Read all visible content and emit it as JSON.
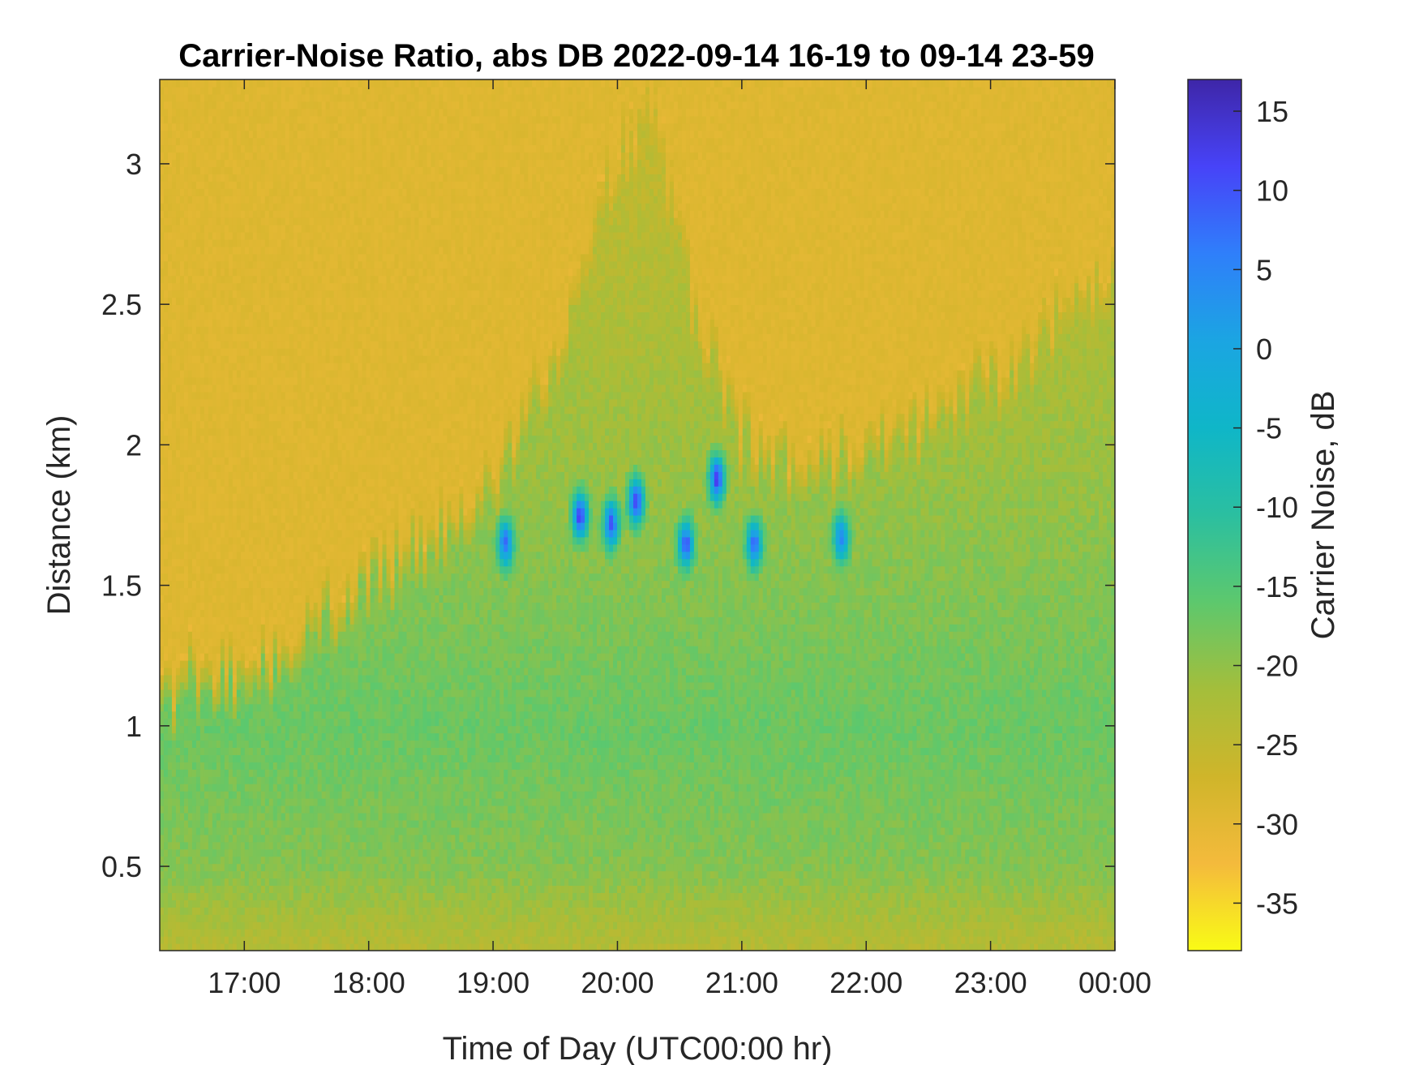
{
  "chart_data": {
    "type": "heatmap",
    "title": "Carrier-Noise Ratio, abs DB 2022-09-14 16-19 to 09-14 23-59",
    "xlabel": "Time of Day (UTC00:00 hr)",
    "ylabel": "Distance (km)",
    "colorbar_label": "Carrier Noise, dB",
    "x_range_hours": [
      16.32,
      24.0
    ],
    "ylim": [
      0.2,
      3.3
    ],
    "clim": [
      -38,
      17
    ],
    "x_ticks": [
      {
        "value": 17,
        "label": "17:00"
      },
      {
        "value": 18,
        "label": "18:00"
      },
      {
        "value": 19,
        "label": "19:00"
      },
      {
        "value": 20,
        "label": "20:00"
      },
      {
        "value": 21,
        "label": "21:00"
      },
      {
        "value": 22,
        "label": "22:00"
      },
      {
        "value": 23,
        "label": "23:00"
      },
      {
        "value": 24,
        "label": "00:00"
      }
    ],
    "y_ticks": [
      {
        "value": 0.5,
        "label": "0.5"
      },
      {
        "value": 1,
        "label": "1"
      },
      {
        "value": 1.5,
        "label": "1.5"
      },
      {
        "value": 2,
        "label": "2"
      },
      {
        "value": 2.5,
        "label": "2.5"
      },
      {
        "value": 3,
        "label": "3"
      }
    ],
    "colorbar_ticks": [
      {
        "value": 15,
        "label": "15"
      },
      {
        "value": 10,
        "label": "10"
      },
      {
        "value": 5,
        "label": "5"
      },
      {
        "value": 0,
        "label": "0"
      },
      {
        "value": -5,
        "label": "-5"
      },
      {
        "value": -10,
        "label": "-10"
      },
      {
        "value": -15,
        "label": "-15"
      },
      {
        "value": -20,
        "label": "-20"
      },
      {
        "value": -25,
        "label": "-25"
      },
      {
        "value": -30,
        "label": "-30"
      },
      {
        "value": -35,
        "label": "-35"
      }
    ],
    "colormap": "parula",
    "colormap_stops": [
      "#3e26a8",
      "#4743f8",
      "#2f7ffa",
      "#1ba5e2",
      "#0fb6c8",
      "#2bbfa0",
      "#5dc86d",
      "#a4be3b",
      "#cfb52a",
      "#f4ba3c",
      "#f9fb15"
    ],
    "noise_floor_db": -30,
    "boundary_layer_top_km": [
      {
        "t": 16.32,
        "km": 1.15
      },
      {
        "t": 16.6,
        "km": 1.25
      },
      {
        "t": 17.0,
        "km": 1.25
      },
      {
        "t": 17.5,
        "km": 1.4
      },
      {
        "t": 18.0,
        "km": 1.6
      },
      {
        "t": 18.5,
        "km": 1.72
      },
      {
        "t": 19.0,
        "km": 1.95
      },
      {
        "t": 19.5,
        "km": 2.35
      },
      {
        "t": 19.8,
        "km": 2.9
      },
      {
        "t": 20.3,
        "km": 3.3
      },
      {
        "t": 20.6,
        "km": 2.6
      },
      {
        "t": 21.0,
        "km": 2.1
      },
      {
        "t": 21.5,
        "km": 2.0
      },
      {
        "t": 22.0,
        "km": 2.05
      },
      {
        "t": 22.5,
        "km": 2.15
      },
      {
        "t": 23.0,
        "km": 2.3
      },
      {
        "t": 23.5,
        "km": 2.5
      },
      {
        "t": 24.0,
        "km": 2.75
      }
    ],
    "strong_returns": [
      {
        "t": 19.1,
        "km": 1.65,
        "db": 8
      },
      {
        "t": 19.7,
        "km": 1.75,
        "db": 12
      },
      {
        "t": 19.95,
        "km": 1.72,
        "db": 10
      },
      {
        "t": 20.15,
        "km": 1.8,
        "db": 12
      },
      {
        "t": 20.55,
        "km": 1.65,
        "db": 10
      },
      {
        "t": 20.8,
        "km": 1.88,
        "db": 13
      },
      {
        "t": 21.1,
        "km": 1.65,
        "db": 8
      },
      {
        "t": 21.8,
        "km": 1.67,
        "db": 5
      }
    ]
  }
}
